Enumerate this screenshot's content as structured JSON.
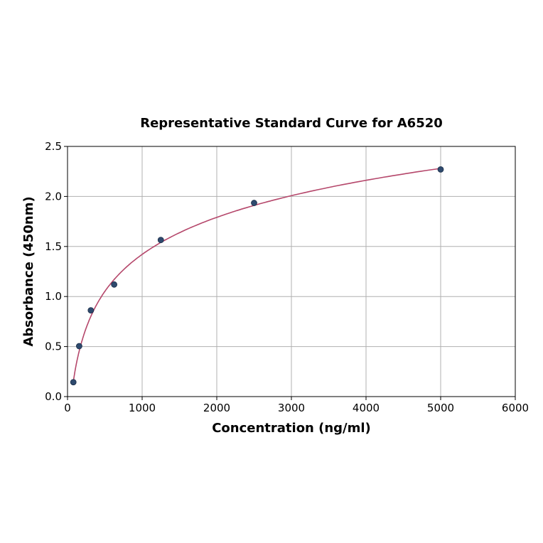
{
  "chart_data": {
    "type": "scatter",
    "title": "Representative Standard Curve for A6520",
    "xlabel": "Concentration (ng/ml)",
    "ylabel": "Absorbance (450nm)",
    "xlim": [
      0,
      6000
    ],
    "ylim": [
      0,
      2.5
    ],
    "xticks": [
      "0",
      "1000",
      "2000",
      "3000",
      "4000",
      "5000",
      "6000"
    ],
    "yticks": [
      "0.0",
      "0.5",
      "1.0",
      "1.5",
      "2.0",
      "2.5"
    ],
    "grid": true,
    "x": [
      78.125,
      156.25,
      312.5,
      625,
      1250,
      2500,
      5000
    ],
    "y": [
      0.144,
      0.504,
      0.862,
      1.12,
      1.565,
      1.935,
      2.27
    ],
    "fit_curve": true,
    "colors": {
      "points": "#2e4a6e",
      "curve": "#b5476b"
    }
  }
}
